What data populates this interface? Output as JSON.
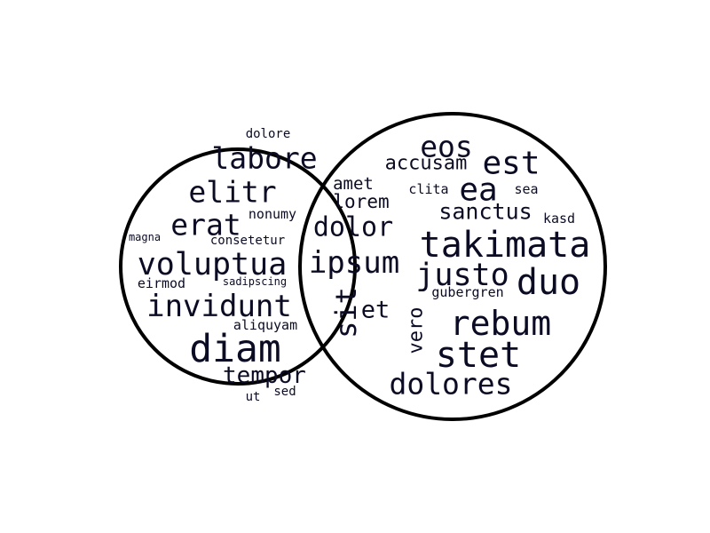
{
  "diagram": {
    "type": "venn-word-cloud",
    "colors": {
      "text": "#0b0b24",
      "outline": "#000000",
      "background": "#ffffff"
    },
    "sets": [
      {
        "id": "left",
        "words": [
          {
            "text": "dolore"
          },
          {
            "text": "labore"
          },
          {
            "text": "elitr"
          },
          {
            "text": "erat"
          },
          {
            "text": "nonumy"
          },
          {
            "text": "magna"
          },
          {
            "text": "consetetur"
          },
          {
            "text": "voluptua"
          },
          {
            "text": "eirmod"
          },
          {
            "text": "sadipscing"
          },
          {
            "text": "invidunt"
          },
          {
            "text": "aliquyam"
          },
          {
            "text": "diam"
          },
          {
            "text": "tempor"
          },
          {
            "text": "sed"
          },
          {
            "text": "ut"
          }
        ]
      },
      {
        "id": "overlap",
        "words": [
          {
            "text": "amet"
          },
          {
            "text": "lorem"
          },
          {
            "text": "dolor"
          },
          {
            "text": "ipsum"
          },
          {
            "text": "sit"
          },
          {
            "text": "et"
          }
        ]
      },
      {
        "id": "right",
        "words": [
          {
            "text": "eos"
          },
          {
            "text": "accusam"
          },
          {
            "text": "est"
          },
          {
            "text": "clita"
          },
          {
            "text": "ea"
          },
          {
            "text": "sea"
          },
          {
            "text": "sanctus"
          },
          {
            "text": "kasd"
          },
          {
            "text": "takimata"
          },
          {
            "text": "justo"
          },
          {
            "text": "duo"
          },
          {
            "text": "gubergren"
          },
          {
            "text": "vero"
          },
          {
            "text": "rebum"
          },
          {
            "text": "stet"
          },
          {
            "text": "dolores"
          }
        ]
      }
    ]
  }
}
